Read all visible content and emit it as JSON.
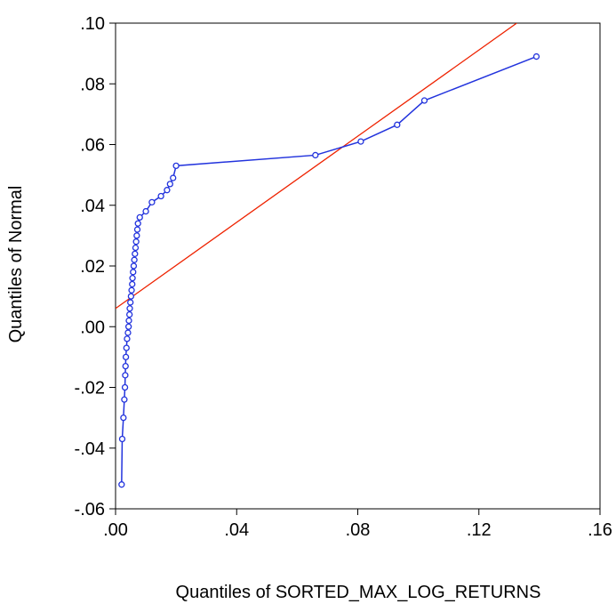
{
  "chart_data": {
    "type": "scatter",
    "title": "",
    "xlabel": "Quantiles of SORTED_MAX_LOG_RETURNS",
    "ylabel": "Quantiles of Normal",
    "xlim": [
      0.0,
      0.16
    ],
    "ylim": [
      -0.06,
      0.1
    ],
    "x_ticks": [
      0.0,
      0.04,
      0.08,
      0.12,
      0.16
    ],
    "x_tick_labels": [
      ".00",
      ".04",
      ".08",
      ".12",
      ".16"
    ],
    "y_ticks": [
      -0.06,
      -0.04,
      -0.02,
      0.0,
      0.02,
      0.04,
      0.06,
      0.08,
      0.1
    ],
    "y_tick_labels": [
      "-.06",
      "-.04",
      "-.02",
      ".00",
      ".02",
      ".04",
      ".06",
      ".08",
      ".10"
    ],
    "grid": false,
    "legend": "none",
    "colors": {
      "series": "#2233dd",
      "reference_line": "#ee2200",
      "axes": "#000000"
    },
    "series": [
      {
        "x": [
          0.002,
          0.0022,
          0.0026,
          0.0029,
          0.0031,
          0.0032,
          0.0033,
          0.0034,
          0.0036,
          0.0038,
          0.0041,
          0.0043,
          0.0044,
          0.0046,
          0.0047,
          0.0049,
          0.0051,
          0.0053,
          0.0055,
          0.0056,
          0.0058,
          0.006,
          0.0062,
          0.0064,
          0.0066,
          0.0068,
          0.007,
          0.0072,
          0.0074,
          0.008,
          0.01,
          0.012,
          0.015,
          0.017,
          0.018,
          0.019,
          0.02,
          0.066,
          0.081,
          0.093,
          0.102,
          0.139
        ],
        "y": [
          -0.052,
          -0.037,
          -0.03,
          -0.024,
          -0.02,
          -0.016,
          -0.013,
          -0.01,
          -0.007,
          -0.004,
          -0.002,
          0.0,
          0.002,
          0.004,
          0.006,
          0.008,
          0.01,
          0.012,
          0.014,
          0.016,
          0.018,
          0.02,
          0.022,
          0.024,
          0.026,
          0.028,
          0.03,
          0.032,
          0.034,
          0.036,
          0.038,
          0.041,
          0.043,
          0.045,
          0.047,
          0.049,
          0.053,
          0.0565,
          0.061,
          0.0665,
          0.0745,
          0.089
        ]
      }
    ],
    "reference_line": {
      "x": [
        0.0,
        0.1325
      ],
      "y": [
        0.006,
        0.1
      ]
    }
  }
}
